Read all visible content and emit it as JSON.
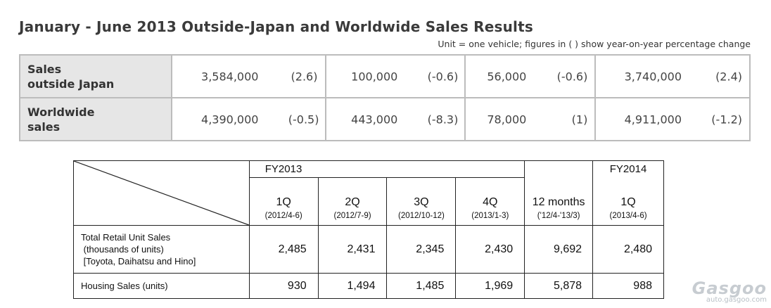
{
  "title": "January - June 2013 Outside-Japan and Worldwide Sales Results",
  "unit_note": "Unit = one vehicle; figures in ( ) show year-on-year percentage change",
  "top_table": {
    "rows": [
      {
        "label_line1": "Sales",
        "label_line2": "outside Japan",
        "cells": [
          {
            "value": "3,584,000",
            "change": "(2.6)"
          },
          {
            "value": "100,000",
            "change": "(-0.6)"
          },
          {
            "value": "56,000",
            "change": "(-0.6)"
          },
          {
            "value": "3,740,000",
            "change": "(2.4)"
          }
        ]
      },
      {
        "label_line1": "Worldwide",
        "label_line2": "sales",
        "cells": [
          {
            "value": "4,390,000",
            "change": "(-0.5)"
          },
          {
            "value": "443,000",
            "change": "(-8.3)"
          },
          {
            "value": "78,000",
            "change": "(1)"
          },
          {
            "value": "4,911,000",
            "change": "(-1.2)"
          }
        ]
      }
    ]
  },
  "bottom_table": {
    "fy2013": "FY2013",
    "fy2014": "FY2014",
    "columns": [
      {
        "label": "1Q",
        "sub": "(2012/4-6)"
      },
      {
        "label": "2Q",
        "sub": "(2012/7-9)"
      },
      {
        "label": "3Q",
        "sub": "(2012/10-12)"
      },
      {
        "label": "4Q",
        "sub": "(2013/1-3)"
      },
      {
        "label": "12 months",
        "sub": "('12/4-'13/3)"
      },
      {
        "label": "1Q",
        "sub": "(2013/4-6)"
      }
    ],
    "rows": [
      {
        "label_lines": [
          "Total Retail Unit Sales",
          " (thousands of units)",
          " [Toyota, Daihatsu and Hino]"
        ],
        "values": [
          "2,485",
          "2,431",
          "2,345",
          "2,430",
          "9,692",
          "2,480"
        ]
      },
      {
        "label_lines": [
          "Housing Sales (units)"
        ],
        "values": [
          "930",
          "1,494",
          "1,485",
          "1,969",
          "5,878",
          "988"
        ]
      }
    ]
  },
  "watermark": {
    "brand": "Gasgoo",
    "url": "auto.gasgoo.com"
  }
}
